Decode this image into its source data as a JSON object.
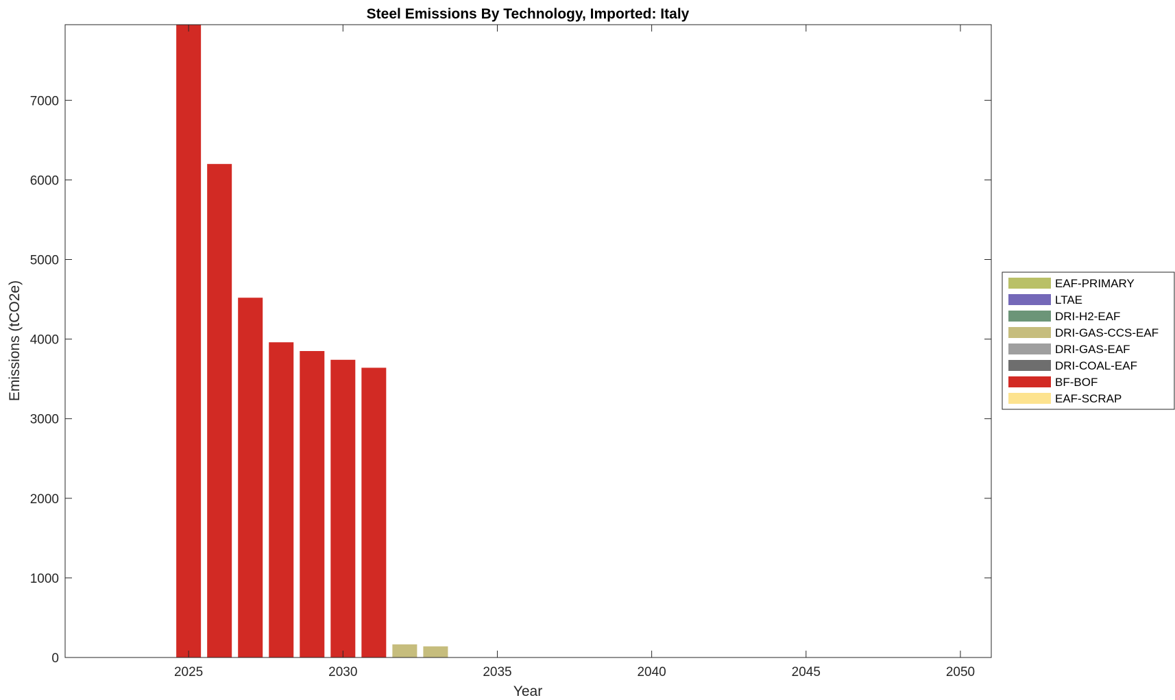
{
  "chart_data": {
    "type": "bar",
    "stacked": true,
    "title": "Steel Emissions By Technology, Imported: Italy",
    "xlabel": "Year",
    "ylabel": "Emissions (tCO2e)",
    "xlim": [
      2021,
      2051
    ],
    "ylim": [
      0,
      7950
    ],
    "xticks": [
      2025,
      2030,
      2035,
      2040,
      2045,
      2050
    ],
    "yticks": [
      0,
      1000,
      2000,
      3000,
      4000,
      5000,
      6000,
      7000
    ],
    "grid": false,
    "legend_position": "right",
    "x": [
      2025,
      2026,
      2027,
      2028,
      2029,
      2030,
      2031,
      2032,
      2033,
      2034,
      2035,
      2036,
      2037,
      2038,
      2039,
      2040,
      2041,
      2042,
      2043,
      2044,
      2045,
      2046,
      2047,
      2048,
      2049,
      2050
    ],
    "series": [
      {
        "name": "EAF-SCRAP",
        "color": "#fde38f",
        "values": [
          0,
          0,
          0,
          0,
          0,
          0,
          0,
          0,
          0,
          0,
          0,
          0,
          0,
          0,
          0,
          0,
          0,
          0,
          0,
          0,
          0,
          0,
          0,
          0,
          0,
          0
        ]
      },
      {
        "name": "BF-BOF",
        "color": "#d22a24",
        "values": [
          7950,
          6200,
          4520,
          3960,
          3850,
          3740,
          3640,
          0,
          0,
          0,
          0,
          0,
          0,
          0,
          0,
          0,
          0,
          0,
          0,
          0,
          0,
          0,
          0,
          0,
          0,
          0
        ]
      },
      {
        "name": "DRI-COAL-EAF",
        "color": "#6e6e6e",
        "values": [
          0,
          0,
          0,
          0,
          0,
          0,
          0,
          0,
          0,
          0,
          0,
          0,
          0,
          0,
          0,
          0,
          0,
          0,
          0,
          0,
          0,
          0,
          0,
          0,
          0,
          0
        ]
      },
      {
        "name": "DRI-GAS-EAF",
        "color": "#9f9f9f",
        "values": [
          0,
          0,
          0,
          0,
          0,
          0,
          0,
          0,
          0,
          0,
          0,
          0,
          0,
          0,
          0,
          0,
          0,
          0,
          0,
          0,
          0,
          0,
          0,
          0,
          0,
          0
        ]
      },
      {
        "name": "DRI-GAS-CCS-EAF",
        "color": "#c6bd7d",
        "values": [
          0,
          0,
          0,
          0,
          0,
          0,
          0,
          165,
          140,
          0,
          0,
          0,
          0,
          0,
          0,
          0,
          0,
          0,
          0,
          0,
          0,
          0,
          0,
          0,
          0,
          0
        ]
      },
      {
        "name": "DRI-H2-EAF",
        "color": "#6c9578",
        "values": [
          0,
          0,
          0,
          0,
          0,
          0,
          0,
          0,
          0,
          0,
          0,
          0,
          0,
          0,
          0,
          0,
          0,
          0,
          0,
          0,
          0,
          0,
          0,
          0,
          0,
          0
        ]
      },
      {
        "name": "LTAE",
        "color": "#7468b8",
        "values": [
          0,
          0,
          0,
          0,
          0,
          0,
          0,
          0,
          0,
          0,
          0,
          0,
          0,
          0,
          0,
          0,
          0,
          0,
          0,
          0,
          0,
          0,
          0,
          0,
          0,
          0
        ]
      },
      {
        "name": "EAF-PRIMARY",
        "color": "#b9c067",
        "values": [
          0,
          0,
          0,
          0,
          0,
          0,
          0,
          0,
          0,
          0,
          0,
          0,
          0,
          0,
          0,
          0,
          0,
          0,
          0,
          0,
          0,
          0,
          0,
          0,
          0,
          0
        ]
      }
    ],
    "legend_order": [
      "EAF-PRIMARY",
      "LTAE",
      "DRI-H2-EAF",
      "DRI-GAS-CCS-EAF",
      "DRI-GAS-EAF",
      "DRI-COAL-EAF",
      "BF-BOF",
      "EAF-SCRAP"
    ]
  }
}
